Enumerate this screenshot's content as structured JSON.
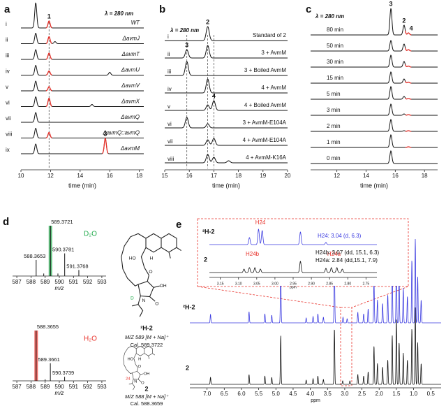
{
  "panels": {
    "a": {
      "letter": "a",
      "wavelength": "λ = 280 nm",
      "xlabel": "time (min)",
      "xlim": [
        10,
        18.3
      ],
      "xticks": [
        10,
        12,
        14,
        16,
        18
      ],
      "markers": [
        11.9
      ],
      "traces": [
        {
          "id": "i",
          "name": "WT",
          "peaks": [
            {
              "t": 11,
              "h": 36
            },
            {
              "t": 11.9,
              "h": 10,
              "hl": true,
              "label": "1"
            }
          ]
        },
        {
          "id": "ii",
          "name": "ΔavmJ",
          "peaks": [
            {
              "t": 11,
              "h": 15
            },
            {
              "t": 11.9,
              "h": 10,
              "hl": true
            },
            {
              "t": 12.3,
              "h": 3
            }
          ]
        },
        {
          "id": "iii",
          "name": "ΔavmT",
          "peaks": [
            {
              "t": 11,
              "h": 14
            },
            {
              "t": 11.9,
              "h": 9,
              "hl": true
            }
          ]
        },
        {
          "id": "iv",
          "name": "ΔavmU",
          "peaks": [
            {
              "t": 11,
              "h": 14
            },
            {
              "t": 11.9,
              "h": 6,
              "hl": true
            },
            {
              "t": 16,
              "h": 4
            }
          ]
        },
        {
          "id": "v",
          "name": "ΔavmV",
          "peaks": [
            {
              "t": 11,
              "h": 14
            },
            {
              "t": 11.9,
              "h": 6,
              "hl": true
            }
          ]
        },
        {
          "id": "vi",
          "name": "ΔavmX",
          "peaks": [
            {
              "t": 11,
              "h": 14
            },
            {
              "t": 11.9,
              "h": 12,
              "hl": true
            },
            {
              "t": 14.8,
              "h": 3
            }
          ]
        },
        {
          "id": "vii",
          "name": "ΔavmQ",
          "peaks": [
            {
              "t": 11,
              "h": 14
            }
          ]
        },
        {
          "id": "viii",
          "name": "ΔavmQ::avmQ",
          "peaks": [
            {
              "t": 11,
              "h": 14
            },
            {
              "t": 11.9,
              "h": 8,
              "hl": true
            }
          ]
        },
        {
          "id": "ix",
          "name": "ΔavmM",
          "peaks": [
            {
              "t": 11,
              "h": 14
            },
            {
              "t": 15.7,
              "h": 22,
              "hl": true,
              "label": "3"
            }
          ]
        }
      ]
    },
    "b": {
      "letter": "b",
      "wavelength": "λ = 280 nm",
      "xlabel": "time (min)",
      "xlim": [
        15,
        20
      ],
      "xticks": [
        15,
        16,
        17,
        18,
        19,
        20
      ],
      "markers": [
        15.9,
        16.75,
        17.0
      ],
      "traces": [
        {
          "id": "i",
          "name": "Standard of 2",
          "peaks": [
            {
              "t": 16.75,
              "h": 20,
              "label": "2"
            }
          ]
        },
        {
          "id": "ii",
          "name": "3 + AvmM",
          "peaks": [
            {
              "t": 15.9,
              "h": 12,
              "label": "3"
            },
            {
              "t": 16.75,
              "h": 18
            }
          ]
        },
        {
          "id": "iii",
          "name": "3 + Boiled AvmM",
          "peaks": [
            {
              "t": 15.9,
              "h": 20
            }
          ]
        },
        {
          "id": "iv",
          "name": "4 + AvmM",
          "peaks": [
            {
              "t": 16.75,
              "h": 20
            }
          ]
        },
        {
          "id": "v",
          "name": "4 + Boiled AvmM",
          "peaks": [
            {
              "t": 16.75,
              "h": 8
            },
            {
              "t": 17.0,
              "h": 14,
              "label": "4"
            }
          ]
        },
        {
          "id": "vi",
          "name": "3 + AvmM-E104A",
          "peaks": [
            {
              "t": 15.9,
              "h": 15
            },
            {
              "t": 16.75,
              "h": 6
            }
          ]
        },
        {
          "id": "vii",
          "name": "4 + AvmM-E104A",
          "peaks": [
            {
              "t": 16.75,
              "h": 8
            },
            {
              "t": 17.0,
              "h": 10
            }
          ]
        },
        {
          "id": "viii",
          "name": "4 + AvmM-K16A",
          "peaks": [
            {
              "t": 16.75,
              "h": 12
            },
            {
              "t": 17.0,
              "h": 8
            },
            {
              "t": 17.6,
              "h": 3
            }
          ]
        }
      ]
    },
    "c": {
      "letter": "c",
      "wavelength": "λ = 280 nm",
      "xlabel": "time (min)",
      "xlim": [
        10.2,
        18.9
      ],
      "xticks": [
        12,
        14,
        16,
        18
      ],
      "markers": [],
      "traces": [
        {
          "name": "80 min",
          "peaks": [
            {
              "t": 15.7,
              "h": 38,
              "label": "3"
            },
            {
              "t": 16.6,
              "h": 14,
              "label": "2"
            },
            {
              "t": 16.9,
              "h": 3,
              "hl": true,
              "label": "4"
            }
          ]
        },
        {
          "name": "50 min",
          "peaks": [
            {
              "t": 15.7,
              "h": 15
            },
            {
              "t": 16.6,
              "h": 10
            },
            {
              "t": 16.9,
              "h": 2,
              "hl": true
            }
          ]
        },
        {
          "name": "30 min",
          "peaks": [
            {
              "t": 15.7,
              "h": 17
            },
            {
              "t": 16.6,
              "h": 8
            },
            {
              "t": 16.9,
              "h": 1.5,
              "hl": true
            }
          ]
        },
        {
          "name": "15 min",
          "peaks": [
            {
              "t": 15.7,
              "h": 16
            },
            {
              "t": 16.6,
              "h": 6
            },
            {
              "t": 16.9,
              "h": 1.5,
              "hl": true
            }
          ]
        },
        {
          "name": "5 min",
          "peaks": [
            {
              "t": 15.7,
              "h": 18
            },
            {
              "t": 16.6,
              "h": 4
            },
            {
              "t": 16.9,
              "h": 1,
              "hl": true
            }
          ]
        },
        {
          "name": "3 min",
          "peaks": [
            {
              "t": 15.7,
              "h": 16
            },
            {
              "t": 16.6,
              "h": 2
            },
            {
              "t": 16.9,
              "h": 1,
              "hl": true
            }
          ]
        },
        {
          "name": "2 min",
          "peaks": [
            {
              "t": 15.7,
              "h": 17
            },
            {
              "t": 16.6,
              "h": 1
            },
            {
              "t": 16.9,
              "h": 1,
              "hl": true
            }
          ]
        },
        {
          "name": "1 min",
          "peaks": [
            {
              "t": 15.7,
              "h": 18
            },
            {
              "t": 16.9,
              "h": 1,
              "hl": true
            }
          ]
        },
        {
          "name": "0 min",
          "peaks": [
            {
              "t": 15.7,
              "h": 18
            }
          ]
        }
      ]
    },
    "d": {
      "letter": "d",
      "xlabel": "m/z",
      "xlim": [
        586.7,
        593.3
      ],
      "xticks": [
        587,
        588,
        589,
        590,
        591,
        592,
        593
      ],
      "spectra": [
        {
          "solvent": "D₂O",
          "color": "#1faa4a",
          "peaks": [
            {
              "mz": 589.3721,
              "h": 1,
              "labeled": true,
              "hl": true
            },
            {
              "mz": 588.3653,
              "h": 0.32,
              "labeled": true
            },
            {
              "mz": 590.3781,
              "h": 0.45,
              "labeled": true
            },
            {
              "mz": 591.3768,
              "h": 0.12,
              "labeled": true
            },
            {
              "mz": 588.9,
              "h": 0.05
            },
            {
              "mz": 589.9,
              "h": 0.05
            }
          ]
        },
        {
          "solvent": "H₂O",
          "color": "#e8312a",
          "peaks": [
            {
              "mz": 588.3655,
              "h": 1,
              "labeled": true,
              "hl": true
            },
            {
              "mz": 589.3661,
              "h": 0.35,
              "labeled": true
            },
            {
              "mz": 590.3739,
              "h": 0.08,
              "labeled": true
            },
            {
              "mz": 589.0,
              "h": 0.03
            }
          ]
        }
      ],
      "compounds": [
        {
          "name": "²H-2",
          "ion": "M/Z 589 [M + Na]⁺",
          "calc": "Cal. 589.3722",
          "atoms": [
            "HO",
            "H",
            "O",
            "N",
            "OH",
            "O",
            "D"
          ]
        },
        {
          "name": "2",
          "ion": "M/Z 588 [M + Na]⁺",
          "calc": "Cal. 588.3659",
          "atoms": [
            "HO",
            "H",
            "O",
            "N",
            "OH",
            "O",
            "24"
          ]
        }
      ]
    },
    "e": {
      "letter": "e",
      "xlabel": "ppm",
      "xlim": [
        7.5,
        0.2
      ],
      "xticks": [
        {
          "value": 7,
          "label": "7.0"
        },
        6.5,
        {
          "value": 6,
          "label": "6.0"
        },
        5.5,
        {
          "value": 5,
          "label": "5.0"
        },
        4.5,
        {
          "value": 4,
          "label": "4.0"
        },
        3.5,
        {
          "value": 3,
          "label": "3.0"
        },
        2.5,
        {
          "value": 2,
          "label": "2.0"
        },
        1.5,
        {
          "value": 1,
          "label": "1.0"
        },
        0.5
      ],
      "spectra": [
        {
          "name": "²H-2",
          "color": "#3a3ae0",
          "peaks": [
            [
              6.9,
              12
            ],
            [
              5.78,
              16
            ],
            [
              5.32,
              13
            ],
            [
              5.12,
              11
            ],
            [
              4.86,
              78
            ],
            [
              4.12,
              7
            ],
            [
              3.92,
              9
            ],
            [
              3.78,
              13
            ],
            [
              3.62,
              8
            ],
            [
              3.3,
              90
            ],
            [
              3.05,
              8
            ],
            [
              2.93,
              6
            ],
            [
              2.62,
              15
            ],
            [
              2.45,
              13
            ],
            [
              2.32,
              20
            ],
            [
              2.15,
              62
            ],
            [
              2.05,
              33
            ],
            [
              1.9,
              28
            ],
            [
              1.75,
              40
            ],
            [
              1.62,
              78
            ],
            [
              1.5,
              105
            ],
            [
              1.42,
              66
            ],
            [
              1.3,
              50
            ],
            [
              1.18,
              38
            ],
            [
              1.05,
              90
            ],
            [
              0.95,
              120
            ],
            [
              0.88,
              66
            ],
            [
              0.78,
              33
            ]
          ]
        },
        {
          "name": "2",
          "color": "#111111",
          "peaks": [
            [
              6.9,
              10
            ],
            [
              5.78,
              14
            ],
            [
              5.32,
              12
            ],
            [
              5.12,
              10
            ],
            [
              4.86,
              70
            ],
            [
              4.12,
              6
            ],
            [
              3.92,
              8
            ],
            [
              3.78,
              12
            ],
            [
              3.62,
              7
            ],
            [
              3.3,
              80
            ],
            [
              3.06,
              5
            ],
            [
              2.85,
              5
            ],
            [
              2.62,
              14
            ],
            [
              2.45,
              12
            ],
            [
              2.32,
              18
            ],
            [
              2.15,
              55
            ],
            [
              2.05,
              30
            ],
            [
              1.9,
              25
            ],
            [
              1.75,
              35
            ],
            [
              1.62,
              70
            ],
            [
              1.5,
              95
            ],
            [
              1.42,
              60
            ],
            [
              1.3,
              45
            ],
            [
              1.18,
              35
            ],
            [
              1.05,
              80
            ],
            [
              0.95,
              110
            ],
            [
              0.88,
              60
            ],
            [
              0.78,
              30
            ]
          ]
        }
      ],
      "inset": {
        "xlabel": "ppm",
        "xlim": [
          3.18,
          2.72
        ],
        "xticks": [
          3.15,
          {
            "value": 3.1,
            "label": "3.10"
          },
          3.05,
          {
            "value": 3,
            "label": "3.00"
          },
          2.95,
          {
            "value": 2.9,
            "label": "2.90"
          },
          2.85,
          {
            "value": 2.8,
            "label": "2.80"
          },
          2.75
        ],
        "spectra": [
          {
            "name": "²H-2",
            "color": "#3a3ae0",
            "peaks": [
              [
                3.07,
                10
              ],
              [
                3.045,
                22
              ],
              [
                3.035,
                20
              ],
              [
                2.93,
                18
              ],
              [
                2.86,
                3
              ]
            ]
          },
          {
            "name": "2",
            "color": "#111111",
            "peaks": [
              [
                3.085,
                5
              ],
              [
                3.07,
                7
              ],
              [
                3.055,
                7
              ],
              [
                3.04,
                5
              ],
              [
                2.93,
                16
              ],
              [
                2.86,
                6
              ],
              [
                2.845,
                7
              ],
              [
                2.83,
                7
              ],
              [
                2.815,
                5
              ]
            ]
          }
        ],
        "peak_labels": [
          "H24",
          "H24b",
          "H24a"
        ],
        "assign_blue": "H24: 3.04 (d, 6.3)",
        "assign_black": [
          "H24b: 3.07 (dd, 15.1, 6.3)",
          "H24a: 2.84 (dd,15.1, 7.9)"
        ]
      }
    }
  }
}
